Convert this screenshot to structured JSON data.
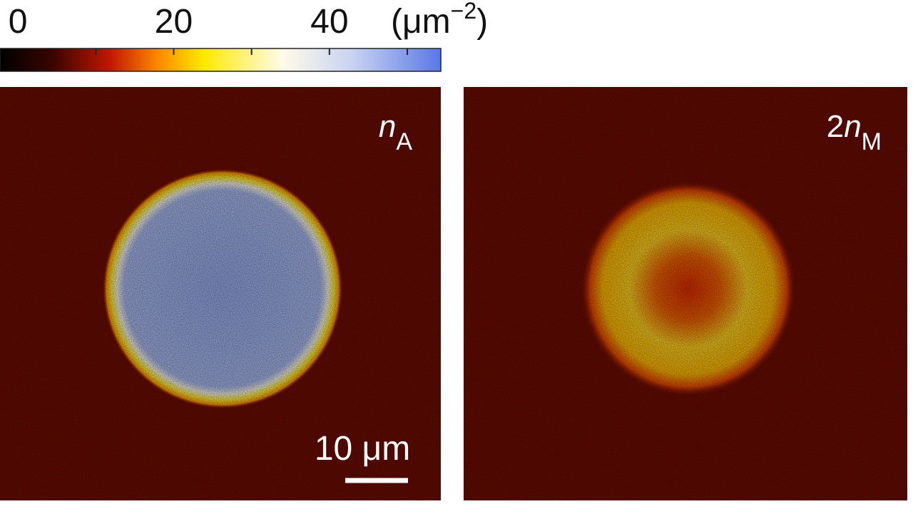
{
  "colorbar": {
    "lim": [
      -2.3,
      54.3
    ],
    "ticks": [
      0,
      20,
      40
    ],
    "minor_ticks": [
      10,
      20,
      30,
      40,
      50
    ],
    "unit": {
      "open": "(μm",
      "exponent": "−2",
      "close": ")"
    }
  },
  "panels": [
    {
      "label": {
        "coefficient": "",
        "variable": "n",
        "subscript": "A"
      },
      "scale_bar": "10 μm"
    },
    {
      "label": {
        "coefficient": "2",
        "variable": "n",
        "subscript": "M"
      }
    }
  ]
}
